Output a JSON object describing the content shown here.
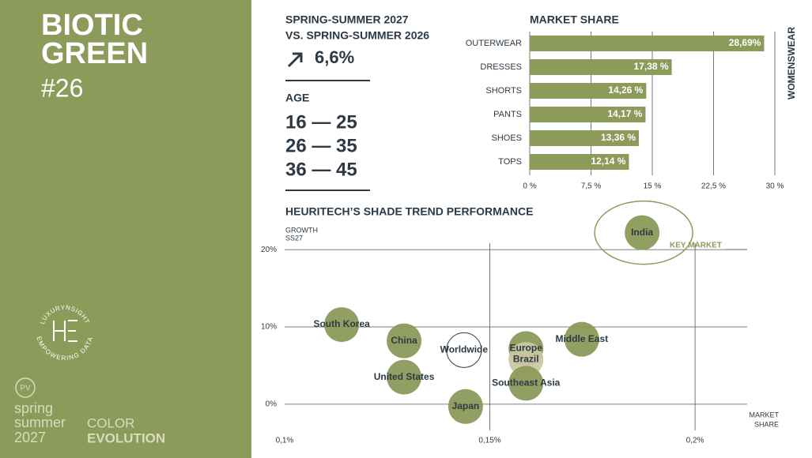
{
  "panel": {
    "title_lines": [
      "BIOTIC",
      "GREEN"
    ],
    "number": "#26",
    "logo_top": "LUXURYNSIGHT",
    "logo_bottom": "EMPOWERING DATA",
    "badge": "PV",
    "season_lines": [
      "spring",
      "summer",
      "2027"
    ],
    "brand_lines": [
      "COLOR",
      "EVOLUTION"
    ]
  },
  "header": {
    "lines": [
      "SPRING-SUMMER 2027",
      "VS. SPRING-SUMMER 2026"
    ],
    "change": "6,6%",
    "age_title": "AGE",
    "age_ranges": [
      "16 — 25",
      "26 — 35",
      "36 — 45"
    ]
  },
  "chart_data": [
    {
      "type": "hbar",
      "title": "MARKET SHARE",
      "side_label": "WOMENSWEAR",
      "color": "#8c9a5a",
      "categories": [
        "OUTERWEAR",
        "DRESSES",
        "SHORTS",
        "PANTS",
        "SHOES",
        "TOPS"
      ],
      "values": [
        28.69,
        17.38,
        14.26,
        14.17,
        13.36,
        12.14
      ],
      "value_labels": [
        "28,69%",
        "17,38 %",
        "14,26 %",
        "14,17 %",
        "13,36 %",
        "12,14 %"
      ],
      "xlim": [
        0,
        30
      ],
      "xticks": [
        {
          "value": 0,
          "label": "0 %"
        },
        {
          "value": 7.5,
          "label": "7,5 %"
        },
        {
          "value": 15,
          "label": "15 %"
        },
        {
          "value": 22.5,
          "label": "22,5 %"
        },
        {
          "value": 30,
          "label": "30 %"
        }
      ],
      "grid": true
    },
    {
      "type": "bubble",
      "title": "HEURITECH’S SHADE TREND PERFORMANCE",
      "y_label": [
        "GROWTH",
        "SS27"
      ],
      "x_label": [
        "MARKET",
        "SHARE"
      ],
      "annotation": "KEY MARKET",
      "labels": [
        "South Korea",
        "China",
        "Worldwide",
        "Europe",
        "Brazil",
        "Middle East",
        "United States",
        "Southeast Asia",
        "Japan",
        "India"
      ],
      "x": [
        0.1139,
        0.1291,
        0.1437,
        0.1588,
        0.1588,
        0.1724,
        0.1291,
        0.1588,
        0.1441,
        0.1871
      ],
      "values": [
        10.3,
        8.2,
        7.0,
        7.2,
        5.8,
        8.4,
        3.5,
        2.7,
        -0.3,
        22.2
      ],
      "colors": [
        "#8c9a5a",
        "#8c9a5a",
        "#ffffff",
        "#8c9a5a",
        "#c9c7a2",
        "#8c9a5a",
        "#8c9a5a",
        "#8c9a5a",
        "#8c9a5a",
        "#8c9a5a"
      ],
      "xlim": [
        0.1,
        0.2127
      ],
      "ylim": [
        -4,
        24
      ],
      "xticks": [
        {
          "value": 0.1,
          "label": "0,1%"
        },
        {
          "value": 0.15,
          "label": "0,15%"
        },
        {
          "value": 0.2,
          "label": "0,2%"
        }
      ],
      "yticks": [
        {
          "value": 0,
          "label": "0%"
        },
        {
          "value": 10,
          "label": "10%"
        },
        {
          "value": 20,
          "label": "20%"
        }
      ],
      "grid": true
    }
  ]
}
